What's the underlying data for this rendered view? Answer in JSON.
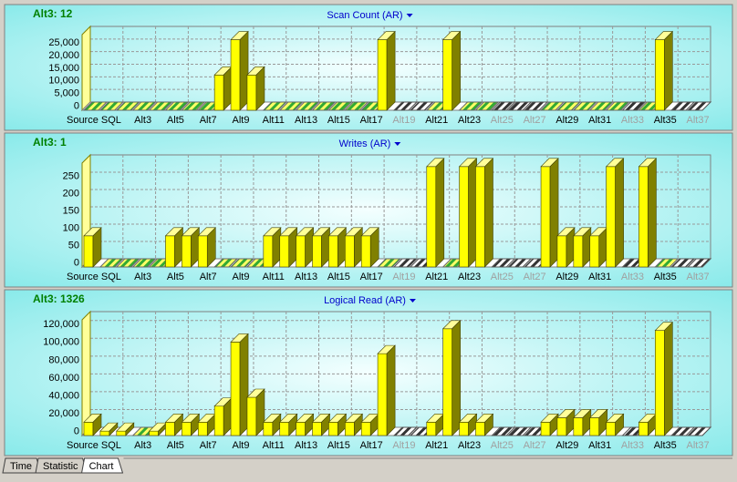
{
  "chart_data": [
    {
      "type": "bar3d",
      "annotation": "Alt3: 12",
      "title": "Scan Count (AR)",
      "categories": [
        "Source SQL",
        null,
        null,
        "Alt3",
        null,
        "Alt5",
        null,
        "Alt7",
        null,
        "Alt9",
        null,
        "Alt11",
        null,
        "Alt13",
        null,
        "Alt15",
        null,
        "Alt17",
        null,
        "Alt19",
        null,
        "Alt21",
        null,
        "Alt23",
        null,
        "Alt25",
        null,
        "Alt27",
        null,
        "Alt29",
        null,
        "Alt31",
        null,
        "Alt33",
        null,
        "Alt35",
        null,
        "Alt37"
      ],
      "values": [
        0,
        0,
        0,
        0,
        0,
        0,
        0,
        0,
        14000,
        28000,
        14000,
        0,
        0,
        0,
        0,
        0,
        0,
        0,
        28000,
        null,
        null,
        0,
        28000,
        0,
        0,
        null,
        null,
        null,
        0,
        0,
        0,
        0,
        0,
        null,
        0,
        28000,
        null,
        null
      ],
      "color": "#ffff00",
      "ylim": [
        0,
        30000
      ],
      "yticks": [
        0,
        {
          "value": 5000,
          "label": "5,000"
        },
        {
          "value": 10000,
          "label": "10,000"
        },
        {
          "value": 15000,
          "label": "15,000"
        },
        {
          "value": 20000,
          "label": "20,000"
        },
        {
          "value": 25000,
          "label": "25,000"
        }
      ],
      "grid": true
    },
    {
      "type": "bar3d",
      "annotation": "Alt3: 1",
      "title": "Writes (AR)",
      "categories": [
        "Source SQL",
        null,
        null,
        "Alt3",
        null,
        "Alt5",
        null,
        "Alt7",
        null,
        "Alt9",
        null,
        "Alt11",
        null,
        "Alt13",
        null,
        "Alt15",
        null,
        "Alt17",
        null,
        "Alt19",
        null,
        "Alt21",
        null,
        "Alt23",
        null,
        "Alt25",
        null,
        "Alt27",
        null,
        "Alt29",
        null,
        "Alt31",
        null,
        "Alt33",
        null,
        "Alt35",
        null,
        "Alt37"
      ],
      "values": [
        90,
        0,
        0,
        0,
        0,
        90,
        90,
        90,
        0,
        0,
        0,
        90,
        90,
        90,
        90,
        90,
        90,
        90,
        0,
        null,
        null,
        290,
        0,
        290,
        290,
        null,
        null,
        null,
        290,
        90,
        90,
        90,
        290,
        null,
        290,
        0,
        null,
        null
      ],
      "color": "#ffff00",
      "ylim": [
        0,
        300
      ],
      "yticks": [
        0,
        50,
        100,
        150,
        200,
        250
      ],
      "grid": true
    },
    {
      "type": "bar3d",
      "annotation": "Alt3: 1326",
      "title": "Logical Read (AR)",
      "categories": [
        "Source SQL",
        null,
        null,
        "Alt3",
        null,
        "Alt5",
        null,
        "Alt7",
        null,
        "Alt9",
        null,
        "Alt11",
        null,
        "Alt13",
        null,
        "Alt15",
        null,
        "Alt17",
        null,
        "Alt19",
        null,
        "Alt21",
        null,
        "Alt23",
        null,
        "Alt25",
        null,
        "Alt27",
        null,
        "Alt29",
        null,
        "Alt31",
        null,
        "Alt33",
        null,
        "Alt35",
        null,
        "Alt37"
      ],
      "values": [
        15000,
        5000,
        5000,
        0,
        5000,
        15000,
        15000,
        15000,
        33000,
        105000,
        43000,
        15000,
        15000,
        15000,
        15000,
        15000,
        15000,
        15000,
        92000,
        null,
        null,
        15000,
        120000,
        15000,
        15000,
        null,
        null,
        null,
        15000,
        20000,
        20000,
        20000,
        15000,
        null,
        15000,
        118000,
        null,
        null
      ],
      "color": "#ffff00",
      "ylim": [
        0,
        130000
      ],
      "yticks": [
        0,
        {
          "value": 20000,
          "label": "20,000"
        },
        {
          "value": 40000,
          "label": "40,000"
        },
        {
          "value": 60000,
          "label": "60,000"
        },
        {
          "value": 80000,
          "label": "80,000"
        },
        {
          "value": 100000,
          "label": "100,000"
        },
        {
          "value": 120000,
          "label": "120,000"
        }
      ],
      "grid": true
    }
  ],
  "tabs": [
    "Time",
    "Statistic",
    "Chart"
  ]
}
